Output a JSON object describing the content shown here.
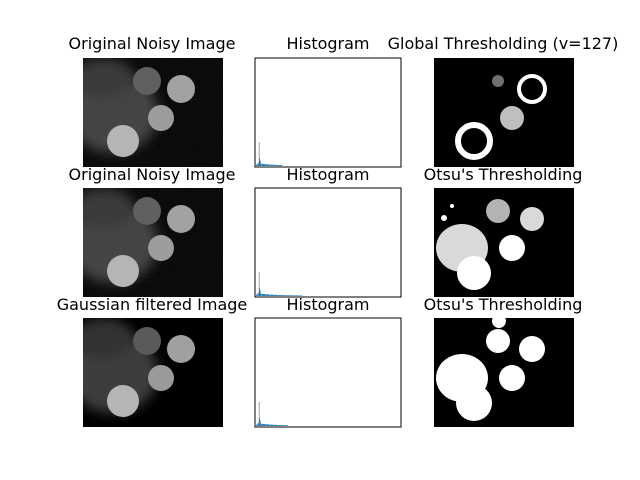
{
  "figure": {
    "background": "#ffffff",
    "histogram_bar_color": "#1f77b4",
    "image_background": "#000000"
  },
  "chart_data": [
    {
      "type": "image",
      "title": "Original Noisy Image",
      "content": "grayscale micrograph of round textured particles on black background"
    },
    {
      "type": "bar",
      "title": "Histogram",
      "xlim": [
        0,
        256
      ],
      "grid": false,
      "peak_x": 5,
      "tail_end_x": 45,
      "note_values": "pixel intensity distribution, tall spike near 0 with low tail"
    },
    {
      "type": "image",
      "title": "Global Thresholding (v=127)",
      "content": "binary mask of particles"
    },
    {
      "type": "image",
      "title": "Original Noisy Image",
      "content": "grayscale micrograph"
    },
    {
      "type": "bar",
      "title": "Histogram",
      "xlim": [
        0,
        256
      ],
      "grid": false,
      "peak_x": 5,
      "tail_end_x": 80
    },
    {
      "type": "image",
      "title": "Otsu's Thresholding",
      "content": "binary mask with larger regions"
    },
    {
      "type": "image",
      "title": "Gaussian filtered Image",
      "content": "smoothed grayscale micrograph"
    },
    {
      "type": "bar",
      "title": "Histogram",
      "xlim": [
        0,
        256
      ],
      "grid": false,
      "peak_x": 5,
      "tail_end_x": 55
    },
    {
      "type": "image",
      "title": "Otsu's Thresholding",
      "content": "smooth binary mask"
    }
  ]
}
